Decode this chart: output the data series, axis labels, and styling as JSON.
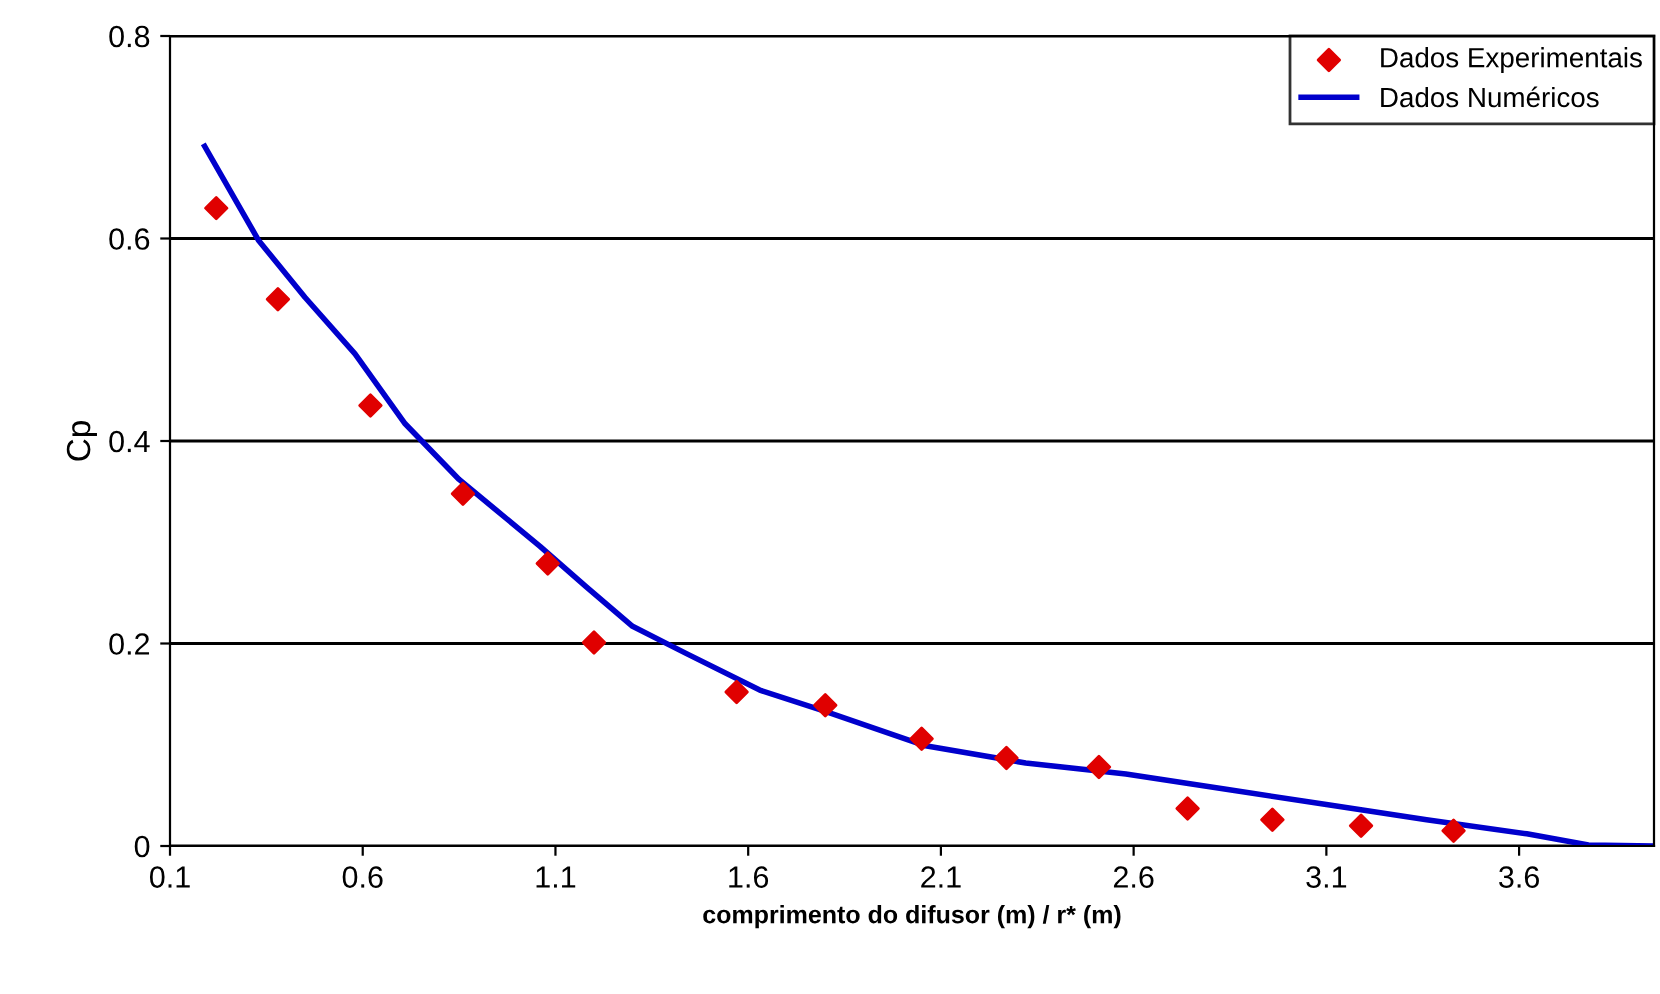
{
  "chart_data": {
    "type": "scatter",
    "xlabel": "comprimento do difusor (m) / r* (m)",
    "ylabel": "Cp",
    "xlim": [
      0.1,
      3.95
    ],
    "xticks": [
      0.1,
      0.6,
      1.1,
      1.6,
      2.1,
      2.6,
      3.1,
      3.6
    ],
    "ylim": [
      0,
      0.8
    ],
    "yticks": [
      0,
      0.2,
      0.4,
      0.6,
      0.8
    ],
    "grid": "y",
    "legend": "top right",
    "series": [
      {
        "name": "Dados Experimentais",
        "marker": "diamond",
        "color": "#e00000",
        "x": [
          0.22,
          0.38,
          0.62,
          0.86,
          1.08,
          1.2,
          1.57,
          1.8,
          2.05,
          2.27,
          2.51,
          2.74,
          2.96,
          3.19,
          3.43
        ],
        "values": [
          0.63,
          0.54,
          0.435,
          0.348,
          0.279,
          0.201,
          0.152,
          0.139,
          0.106,
          0.087,
          0.078,
          0.037,
          0.026,
          0.02,
          0.015
        ]
      },
      {
        "name": "Dados Numéricos",
        "type": "line",
        "marker": "none",
        "line_style": "solid",
        "color": "#0000cc",
        "x": [
          0.19,
          0.33,
          0.45,
          0.58,
          0.71,
          0.85,
          1.06,
          1.18,
          1.3,
          1.44,
          1.63,
          1.8,
          2.06,
          2.32,
          2.58,
          2.84,
          3.1,
          3.36,
          3.62,
          3.78,
          3.95
        ],
        "values": [
          0.691,
          0.598,
          0.542,
          0.486,
          0.417,
          0.362,
          0.296,
          0.256,
          0.217,
          0.19,
          0.154,
          0.133,
          0.099,
          0.082,
          0.071,
          0.056,
          0.041,
          0.026,
          0.012,
          0.001,
          0
        ]
      }
    ]
  }
}
